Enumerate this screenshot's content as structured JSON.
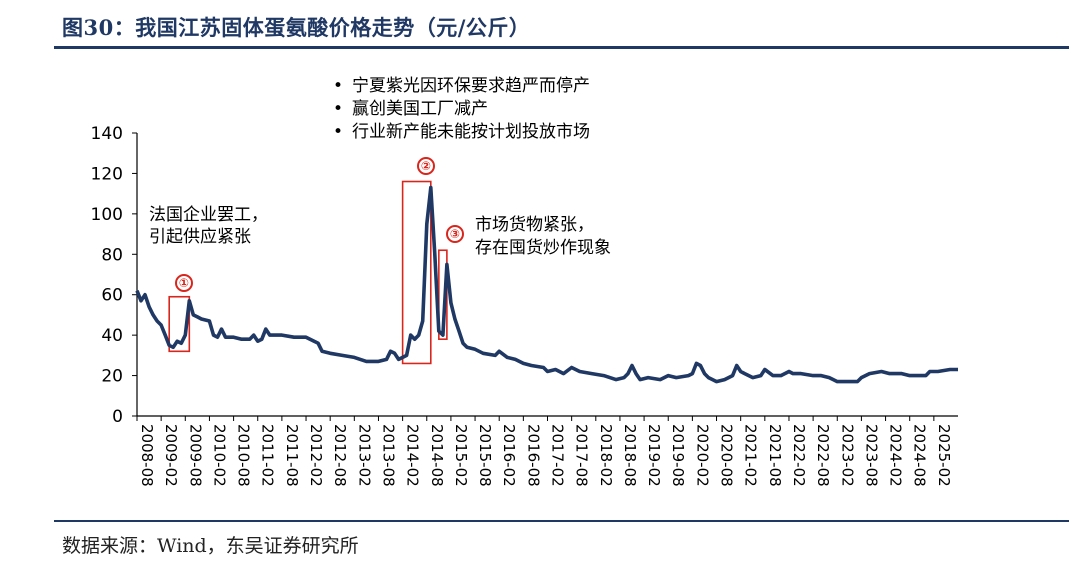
{
  "header": {
    "title": "图30：我国江苏固体蛋氨酸价格走势（元/公斤）"
  },
  "footer": {
    "source": "数据来源：Wind，东吴证券研究所"
  },
  "annotations": {
    "bullets": [
      "宁夏紫光因环保要求趋严而停产",
      "赢创美国工厂减产",
      "行业新产能未能按计划投放市场"
    ],
    "note1_line1": "法国企业罢工，",
    "note1_line2": "引起供应紧张",
    "note3_line1": "市场货物紧张，",
    "note3_line2": "存在囤货炒作现象",
    "markers": [
      "①",
      "②",
      "③"
    ]
  },
  "colors": {
    "line": "#1f3864",
    "highlight": "#d9261c",
    "accent": "#1f3864"
  },
  "chart_data": {
    "type": "line",
    "title": "",
    "xlabel": "",
    "ylabel": "",
    "ylim": [
      0,
      140
    ],
    "yticks": [
      0,
      20,
      40,
      60,
      80,
      100,
      120,
      140
    ],
    "xlim": [
      "2008-08",
      "2025-08"
    ],
    "xticks": [
      "2008-08",
      "2009-02",
      "2009-08",
      "2010-02",
      "2010-08",
      "2011-02",
      "2011-08",
      "2012-02",
      "2012-08",
      "2013-02",
      "2013-08",
      "2014-02",
      "2014-08",
      "2015-02",
      "2015-08",
      "2016-02",
      "2016-08",
      "2017-02",
      "2017-08",
      "2018-02",
      "2018-08",
      "2019-02",
      "2019-08",
      "2020-02",
      "2020-08",
      "2021-02",
      "2021-08",
      "2022-02",
      "2022-08",
      "2023-02",
      "2023-08",
      "2024-02",
      "2024-08",
      "2025-02"
    ],
    "grid": false,
    "highlight_boxes": [
      {
        "label": "①",
        "x": [
          "2009-04",
          "2009-09"
        ],
        "y": [
          32,
          59
        ]
      },
      {
        "label": "②",
        "x": [
          "2014-02",
          "2014-09"
        ],
        "y": [
          26,
          116
        ]
      },
      {
        "label": "③",
        "x": [
          "2014-11",
          "2015-01"
        ],
        "y": [
          38,
          82
        ]
      }
    ],
    "series": [
      {
        "name": "",
        "points": [
          [
            "2008-08",
            62
          ],
          [
            "2008-09",
            57
          ],
          [
            "2008-10",
            60
          ],
          [
            "2008-11",
            54
          ],
          [
            "2008-12",
            50
          ],
          [
            "2009-01",
            47
          ],
          [
            "2009-02",
            45
          ],
          [
            "2009-03",
            40
          ],
          [
            "2009-04",
            35
          ],
          [
            "2009-05",
            34
          ],
          [
            "2009-06",
            37
          ],
          [
            "2009-07",
            36
          ],
          [
            "2009-08",
            40
          ],
          [
            "2009-09",
            57
          ],
          [
            "2009-10",
            50
          ],
          [
            "2009-11",
            49
          ],
          [
            "2009-12",
            48
          ],
          [
            "2010-02",
            47
          ],
          [
            "2010-03",
            40
          ],
          [
            "2010-04",
            39
          ],
          [
            "2010-05",
            43
          ],
          [
            "2010-06",
            39
          ],
          [
            "2010-08",
            39
          ],
          [
            "2010-10",
            38
          ],
          [
            "2010-12",
            38
          ],
          [
            "2011-01",
            40
          ],
          [
            "2011-02",
            37
          ],
          [
            "2011-03",
            38
          ],
          [
            "2011-04",
            43
          ],
          [
            "2011-05",
            40
          ],
          [
            "2011-08",
            40
          ],
          [
            "2011-11",
            39
          ],
          [
            "2012-02",
            39
          ],
          [
            "2012-04",
            37
          ],
          [
            "2012-05",
            36
          ],
          [
            "2012-06",
            32
          ],
          [
            "2012-08",
            31
          ],
          [
            "2012-11",
            30
          ],
          [
            "2013-02",
            29
          ],
          [
            "2013-05",
            27
          ],
          [
            "2013-08",
            27
          ],
          [
            "2013-10",
            28
          ],
          [
            "2013-11",
            32
          ],
          [
            "2013-12",
            31
          ],
          [
            "2014-01",
            28
          ],
          [
            "2014-02",
            29
          ],
          [
            "2014-03",
            30
          ],
          [
            "2014-04",
            40
          ],
          [
            "2014-05",
            38
          ],
          [
            "2014-06",
            40
          ],
          [
            "2014-07",
            47
          ],
          [
            "2014-08",
            95
          ],
          [
            "2014-09",
            113
          ],
          [
            "2014-10",
            80
          ],
          [
            "2014-11",
            42
          ],
          [
            "2014-12",
            40
          ],
          [
            "2015-01",
            75
          ],
          [
            "2015-02",
            56
          ],
          [
            "2015-03",
            48
          ],
          [
            "2015-04",
            42
          ],
          [
            "2015-05",
            36
          ],
          [
            "2015-06",
            34
          ],
          [
            "2015-08",
            33
          ],
          [
            "2015-10",
            31
          ],
          [
            "2016-01",
            30
          ],
          [
            "2016-02",
            32
          ],
          [
            "2016-04",
            29
          ],
          [
            "2016-06",
            28
          ],
          [
            "2016-08",
            26
          ],
          [
            "2016-10",
            25
          ],
          [
            "2017-01",
            24
          ],
          [
            "2017-02",
            22
          ],
          [
            "2017-04",
            23
          ],
          [
            "2017-06",
            21
          ],
          [
            "2017-08",
            24
          ],
          [
            "2017-10",
            22
          ],
          [
            "2018-01",
            21
          ],
          [
            "2018-04",
            20
          ],
          [
            "2018-07",
            18
          ],
          [
            "2018-09",
            19
          ],
          [
            "2018-10",
            21
          ],
          [
            "2018-11",
            25
          ],
          [
            "2018-12",
            21
          ],
          [
            "2019-01",
            18
          ],
          [
            "2019-03",
            19
          ],
          [
            "2019-06",
            18
          ],
          [
            "2019-08",
            20
          ],
          [
            "2019-10",
            19
          ],
          [
            "2020-01",
            20
          ],
          [
            "2020-02",
            21
          ],
          [
            "2020-03",
            26
          ],
          [
            "2020-04",
            25
          ],
          [
            "2020-05",
            21
          ],
          [
            "2020-06",
            19
          ],
          [
            "2020-08",
            17
          ],
          [
            "2020-10",
            18
          ],
          [
            "2020-12",
            20
          ],
          [
            "2021-01",
            25
          ],
          [
            "2021-02",
            22
          ],
          [
            "2021-03",
            21
          ],
          [
            "2021-05",
            19
          ],
          [
            "2021-07",
            20
          ],
          [
            "2021-08",
            23
          ],
          [
            "2021-10",
            20
          ],
          [
            "2021-12",
            20
          ],
          [
            "2022-02",
            22
          ],
          [
            "2022-03",
            21
          ],
          [
            "2022-05",
            21
          ],
          [
            "2022-08",
            20
          ],
          [
            "2022-10",
            20
          ],
          [
            "2022-12",
            19
          ],
          [
            "2023-02",
            17
          ],
          [
            "2023-05",
            17
          ],
          [
            "2023-07",
            17
          ],
          [
            "2023-08",
            19
          ],
          [
            "2023-10",
            21
          ],
          [
            "2024-01",
            22
          ],
          [
            "2024-03",
            21
          ],
          [
            "2024-06",
            21
          ],
          [
            "2024-08",
            20
          ],
          [
            "2024-10",
            20
          ],
          [
            "2024-12",
            20
          ],
          [
            "2025-01",
            22
          ],
          [
            "2025-03",
            22
          ],
          [
            "2025-06",
            23
          ],
          [
            "2025-08",
            23
          ]
        ]
      }
    ]
  }
}
